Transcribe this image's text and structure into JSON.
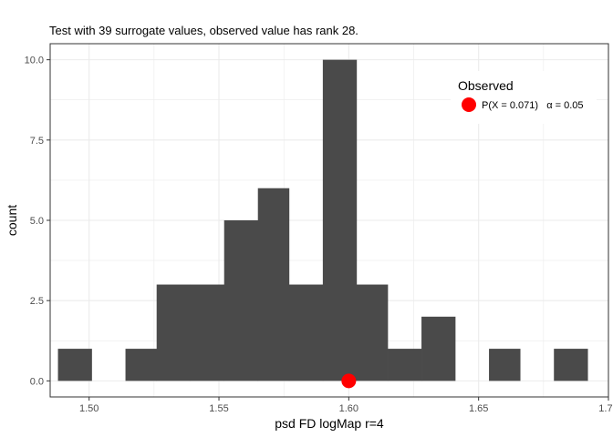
{
  "chart_data": {
    "type": "histogram",
    "title": "Test with 39 surrogate values, observed value has rank 28.",
    "xlabel": "psd FD logMap r=4",
    "ylabel": "count",
    "xlim": [
      1.485,
      1.7
    ],
    "ylim": [
      -0.5,
      10.5
    ],
    "x_ticks": [
      1.5,
      1.55,
      1.6,
      1.65,
      1.7
    ],
    "x_tick_labels": [
      "1.50",
      "1.55",
      "1.60",
      "1.65",
      "1.70"
    ],
    "y_ticks": [
      0,
      2.5,
      5,
      7.5,
      10
    ],
    "y_tick_labels": [
      "0.0",
      "2.5",
      "5.0",
      "7.5",
      "10.0"
    ],
    "grid": true,
    "bins": [
      {
        "x0": 1.488,
        "x1": 1.501,
        "count": 1
      },
      {
        "x0": 1.501,
        "x1": 1.514,
        "count": 0
      },
      {
        "x0": 1.514,
        "x1": 1.526,
        "count": 1
      },
      {
        "x0": 1.526,
        "x1": 1.539,
        "count": 3
      },
      {
        "x0": 1.539,
        "x1": 1.552,
        "count": 3
      },
      {
        "x0": 1.552,
        "x1": 1.565,
        "count": 5
      },
      {
        "x0": 1.565,
        "x1": 1.577,
        "count": 6
      },
      {
        "x0": 1.577,
        "x1": 1.59,
        "count": 3
      },
      {
        "x0": 1.59,
        "x1": 1.603,
        "count": 10
      },
      {
        "x0": 1.603,
        "x1": 1.615,
        "count": 3
      },
      {
        "x0": 1.615,
        "x1": 1.628,
        "count": 1
      },
      {
        "x0": 1.628,
        "x1": 1.641,
        "count": 2
      },
      {
        "x0": 1.641,
        "x1": 1.654,
        "count": 0
      },
      {
        "x0": 1.654,
        "x1": 1.666,
        "count": 1
      },
      {
        "x0": 1.666,
        "x1": 1.679,
        "count": 0
      },
      {
        "x0": 1.679,
        "x1": 1.692,
        "count": 1
      }
    ],
    "observed": {
      "x": 1.6,
      "y": 0
    },
    "legend": {
      "title": "Observed",
      "label": "P(X = 0.071)   α = 0.05",
      "position": "top-right"
    },
    "colors": {
      "bar": "#4a4a4a",
      "observed": "#ff0000",
      "grid": "#ebebeb",
      "border": "#333333"
    }
  }
}
